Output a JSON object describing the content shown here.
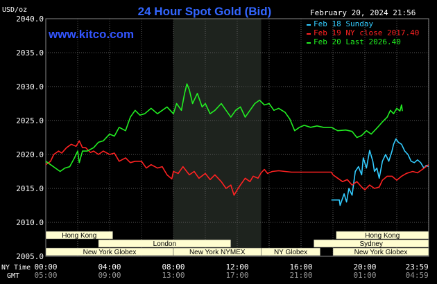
{
  "title": "24 Hour Spot Gold (Bid)",
  "site": "www.kitco.com",
  "unit_label": "USD/oz",
  "date_stamp": "February 20, 2024 21:56",
  "legend": [
    {
      "text": "Feb 18 Sunday",
      "color": "#33ccff"
    },
    {
      "text": "Feb 19 NY close 2017.40",
      "color": "#ff2222"
    },
    {
      "text": "Feb 20 Last 2026.40",
      "color": "#22ee22"
    }
  ],
  "time_row_labels": {
    "ny": "NY Time",
    "gmt": "GMT"
  },
  "x_ticks_ny": [
    "00:00",
    "04:00",
    "08:00",
    "12:00",
    "16:00",
    "20:00",
    "23:59"
  ],
  "x_ticks_gmt": [
    "05:00",
    "09:00",
    "13:00",
    "17:00",
    "21:00",
    "01:00",
    "04:59"
  ],
  "sessions": [
    {
      "label": "Hong Kong",
      "start_hour": 0,
      "end_hour": 4.2,
      "row": 0
    },
    {
      "label": "Hong Kong",
      "start_hour": 18.2,
      "end_hour": 24,
      "row": 0
    },
    {
      "label": "London",
      "start_hour": 3.3,
      "end_hour": 11.6,
      "row": 1
    },
    {
      "label": "Sydney",
      "start_hour": 16.8,
      "end_hour": 24,
      "row": 1
    },
    {
      "label": "New York Globex",
      "start_hour": 0,
      "end_hour": 8,
      "row": 2
    },
    {
      "label": "New York NYMEX",
      "start_hour": 8,
      "end_hour": 13.5,
      "row": 2
    },
    {
      "label": "NY Globex",
      "start_hour": 13.5,
      "end_hour": 17.2,
      "row": 2
    },
    {
      "label": "New York Globex",
      "start_hour": 18,
      "end_hour": 24,
      "row": 2
    }
  ],
  "colors": {
    "background": "#000000",
    "plot_bg": "#000000",
    "nymex_shade": "#1e231e",
    "grid": "#5a5a5a",
    "axis_text": "#ffffff",
    "title": "#3366ff",
    "site": "#3355ff",
    "session_fill": "#fffdd0",
    "session_text": "#000000"
  },
  "chart_data": {
    "type": "line",
    "title": "24 Hour Spot Gold (Bid)",
    "xlabel": "",
    "ylabel": "USD/oz",
    "x_unit": "NY time hours",
    "xlim": [
      0,
      24
    ],
    "ylim": [
      2005,
      2040
    ],
    "y_ticks": [
      2005.0,
      2010.0,
      2015.0,
      2020.0,
      2025.0,
      2030.0,
      2035.0,
      2040.0
    ],
    "grid": true,
    "legend_position": "top-right",
    "series": [
      {
        "name": "Feb 18 Sunday",
        "color": "#33ccff",
        "points": [
          [
            17.9,
            2013.3
          ],
          [
            18.4,
            2013.3
          ],
          [
            18.45,
            2012.5
          ],
          [
            18.7,
            2014.2
          ],
          [
            18.85,
            2013.0
          ],
          [
            19.0,
            2015.0
          ],
          [
            19.2,
            2014.0
          ],
          [
            19.4,
            2017.5
          ],
          [
            19.6,
            2018.2
          ],
          [
            19.8,
            2017.0
          ],
          [
            19.9,
            2019.5
          ],
          [
            20.1,
            2018.0
          ],
          [
            20.3,
            2020.6
          ],
          [
            20.5,
            2019.0
          ],
          [
            20.6,
            2017.5
          ],
          [
            20.75,
            2018.0
          ],
          [
            20.9,
            2016.5
          ],
          [
            21.1,
            2019.0
          ],
          [
            21.3,
            2020.0
          ],
          [
            21.5,
            2019.0
          ],
          [
            21.7,
            2020.5
          ],
          [
            21.8,
            2021.5
          ],
          [
            21.95,
            2022.3
          ],
          [
            22.1,
            2021.8
          ],
          [
            22.3,
            2021.5
          ],
          [
            22.5,
            2020.5
          ],
          [
            22.7,
            2020.0
          ],
          [
            22.9,
            2019.0
          ],
          [
            23.1,
            2018.8
          ],
          [
            23.3,
            2019.2
          ],
          [
            23.5,
            2018.8
          ],
          [
            23.7,
            2018.0
          ],
          [
            23.85,
            2018.4
          ],
          [
            23.99,
            2018.2
          ]
        ]
      },
      {
        "name": "Feb 19 NY close 2017.40",
        "color": "#ff2222",
        "points": [
          [
            0.0,
            2018.5
          ],
          [
            0.3,
            2019.0
          ],
          [
            0.5,
            2020.0
          ],
          [
            0.8,
            2020.5
          ],
          [
            1.0,
            2020.2
          ],
          [
            1.3,
            2021.0
          ],
          [
            1.6,
            2021.5
          ],
          [
            1.9,
            2021.2
          ],
          [
            2.1,
            2022.0
          ],
          [
            2.3,
            2021.0
          ],
          [
            2.5,
            2021.0
          ],
          [
            2.8,
            2020.3
          ],
          [
            3.0,
            2020.5
          ],
          [
            3.3,
            2020.0
          ],
          [
            3.6,
            2020.5
          ],
          [
            4.0,
            2020.0
          ],
          [
            4.3,
            2020.2
          ],
          [
            4.6,
            2019.0
          ],
          [
            5.0,
            2019.5
          ],
          [
            5.3,
            2018.8
          ],
          [
            5.6,
            2019.0
          ],
          [
            6.0,
            2019.0
          ],
          [
            6.3,
            2018.0
          ],
          [
            6.6,
            2018.5
          ],
          [
            7.0,
            2018.0
          ],
          [
            7.3,
            2018.2
          ],
          [
            7.6,
            2017.0
          ],
          [
            7.9,
            2016.4
          ],
          [
            8.0,
            2017.5
          ],
          [
            8.3,
            2017.2
          ],
          [
            8.6,
            2018.2
          ],
          [
            9.0,
            2017.0
          ],
          [
            9.3,
            2017.5
          ],
          [
            9.6,
            2016.5
          ],
          [
            10.0,
            2017.2
          ],
          [
            10.3,
            2016.3
          ],
          [
            10.6,
            2017.0
          ],
          [
            11.0,
            2016.0
          ],
          [
            11.3,
            2015.0
          ],
          [
            11.6,
            2015.5
          ],
          [
            11.8,
            2014.0
          ],
          [
            12.0,
            2014.8
          ],
          [
            12.2,
            2015.5
          ],
          [
            12.5,
            2016.5
          ],
          [
            12.8,
            2016.0
          ],
          [
            13.0,
            2016.8
          ],
          [
            13.3,
            2016.5
          ],
          [
            13.5,
            2017.3
          ],
          [
            13.7,
            2017.8
          ],
          [
            13.9,
            2017.2
          ],
          [
            14.2,
            2017.5
          ],
          [
            14.6,
            2017.6
          ],
          [
            15.0,
            2017.5
          ],
          [
            15.4,
            2017.4
          ],
          [
            16.0,
            2017.4
          ],
          [
            16.6,
            2017.4
          ],
          [
            17.0,
            2017.4
          ],
          [
            17.4,
            2017.4
          ],
          [
            17.9,
            2017.4
          ],
          [
            18.0,
            2017.0
          ],
          [
            18.3,
            2016.5
          ],
          [
            18.6,
            2016.0
          ],
          [
            18.9,
            2016.3
          ],
          [
            19.2,
            2015.5
          ],
          [
            19.5,
            2016.0
          ],
          [
            19.8,
            2015.2
          ],
          [
            20.0,
            2014.8
          ],
          [
            20.3,
            2015.5
          ],
          [
            20.6,
            2015.0
          ],
          [
            20.9,
            2015.2
          ],
          [
            21.1,
            2016.2
          ],
          [
            21.4,
            2016.8
          ],
          [
            21.7,
            2016.8
          ],
          [
            22.0,
            2016.2
          ],
          [
            22.3,
            2016.8
          ],
          [
            22.6,
            2017.2
          ],
          [
            23.0,
            2017.5
          ],
          [
            23.3,
            2017.3
          ],
          [
            23.6,
            2017.8
          ],
          [
            23.99,
            2018.5
          ]
        ]
      },
      {
        "name": "Feb 20 Last 2026.40",
        "color": "#22ee22",
        "points": [
          [
            0.0,
            2019.0
          ],
          [
            0.3,
            2018.5
          ],
          [
            0.6,
            2018.0
          ],
          [
            0.9,
            2017.5
          ],
          [
            1.2,
            2018.0
          ],
          [
            1.5,
            2018.2
          ],
          [
            1.8,
            2019.5
          ],
          [
            2.0,
            2020.5
          ],
          [
            2.1,
            2018.8
          ],
          [
            2.3,
            2020.5
          ],
          [
            2.6,
            2020.5
          ],
          [
            3.0,
            2021.0
          ],
          [
            3.3,
            2021.8
          ],
          [
            3.6,
            2022.0
          ],
          [
            4.0,
            2023.0
          ],
          [
            4.3,
            2022.7
          ],
          [
            4.6,
            2024.0
          ],
          [
            5.0,
            2023.5
          ],
          [
            5.3,
            2025.5
          ],
          [
            5.6,
            2026.5
          ],
          [
            5.9,
            2025.8
          ],
          [
            6.2,
            2026.0
          ],
          [
            6.6,
            2026.8
          ],
          [
            7.0,
            2026.0
          ],
          [
            7.3,
            2026.5
          ],
          [
            7.6,
            2027.0
          ],
          [
            8.0,
            2026.0
          ],
          [
            8.2,
            2027.5
          ],
          [
            8.5,
            2026.5
          ],
          [
            8.7,
            2029.0
          ],
          [
            8.85,
            2030.4
          ],
          [
            9.0,
            2029.5
          ],
          [
            9.2,
            2027.5
          ],
          [
            9.5,
            2029.0
          ],
          [
            9.8,
            2027.0
          ],
          [
            10.0,
            2027.5
          ],
          [
            10.3,
            2026.0
          ],
          [
            10.6,
            2026.5
          ],
          [
            11.0,
            2027.5
          ],
          [
            11.3,
            2026.5
          ],
          [
            11.6,
            2025.5
          ],
          [
            11.9,
            2026.5
          ],
          [
            12.2,
            2027.0
          ],
          [
            12.5,
            2025.5
          ],
          [
            12.8,
            2026.5
          ],
          [
            13.1,
            2027.5
          ],
          [
            13.4,
            2028.0
          ],
          [
            13.7,
            2027.3
          ],
          [
            14.0,
            2027.5
          ],
          [
            14.3,
            2026.5
          ],
          [
            14.6,
            2026.8
          ],
          [
            15.0,
            2026.2
          ],
          [
            15.3,
            2025.2
          ],
          [
            15.6,
            2023.5
          ],
          [
            15.9,
            2024.0
          ],
          [
            16.2,
            2024.3
          ],
          [
            16.6,
            2024.0
          ],
          [
            17.0,
            2024.2
          ],
          [
            17.4,
            2024.0
          ],
          [
            17.9,
            2024.0
          ],
          [
            18.3,
            2023.5
          ],
          [
            18.8,
            2023.6
          ],
          [
            19.2,
            2023.4
          ],
          [
            19.5,
            2022.5
          ],
          [
            19.8,
            2022.8
          ],
          [
            20.1,
            2023.5
          ],
          [
            20.4,
            2023.0
          ],
          [
            20.8,
            2024.0
          ],
          [
            21.1,
            2024.8
          ],
          [
            21.4,
            2025.5
          ],
          [
            21.6,
            2026.5
          ],
          [
            21.8,
            2026.0
          ],
          [
            22.0,
            2026.8
          ],
          [
            22.2,
            2026.4
          ],
          [
            22.3,
            2027.3
          ],
          [
            22.35,
            2026.4
          ]
        ]
      }
    ]
  }
}
